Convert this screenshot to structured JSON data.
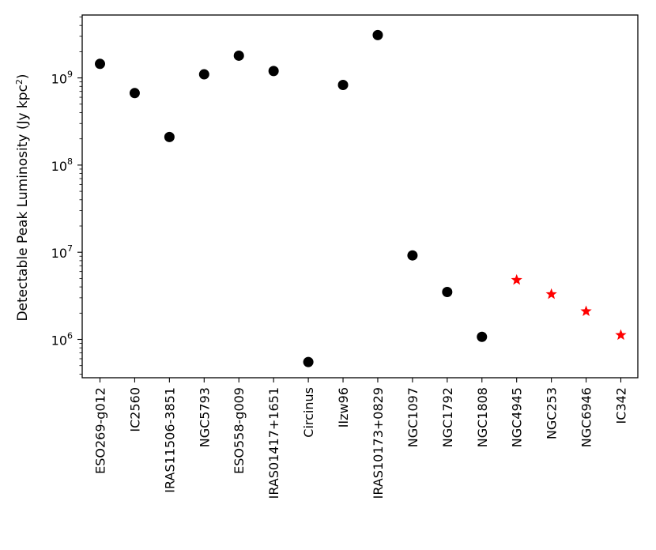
{
  "chart_data": {
    "type": "scatter",
    "title": "",
    "xlabel": "",
    "ylabel_prefix": "Detectable Peak Luminosity (Jy kpc",
    "ylabel_sup": "2",
    "ylabel_suffix": ")",
    "yscale": "log",
    "ylim": [
      350000,
      5000000000
    ],
    "grid": false,
    "categories": [
      "ESO269-g012",
      "IC2560",
      "IRAS11506-3851",
      "NGC5793",
      "ESO558-g009",
      "IRAS01417+1651",
      "Circinus",
      "IIzw96",
      "IRAS10173+0829",
      "NGC1097",
      "NGC1792",
      "NGC1808",
      "NGC4945",
      "NGC253",
      "NGC6946",
      "IC342"
    ],
    "yticks": [
      {
        "value": 1000000,
        "base": "10",
        "exp": "6"
      },
      {
        "value": 10000000,
        "base": "10",
        "exp": "7"
      },
      {
        "value": 100000000,
        "base": "10",
        "exp": "8"
      },
      {
        "value": 1000000000,
        "base": "10",
        "exp": "9"
      }
    ],
    "series": [
      {
        "marker": "circle",
        "color": "#000000",
        "points": [
          {
            "x": "ESO269-g012",
            "y": 1450000000
          },
          {
            "x": "IC2560",
            "y": 670000000
          },
          {
            "x": "IRAS11506-3851",
            "y": 210000000
          },
          {
            "x": "NGC5793",
            "y": 1100000000
          },
          {
            "x": "ESO558-g009",
            "y": 1800000000
          },
          {
            "x": "IRAS01417+1651",
            "y": 1200000000
          },
          {
            "x": "Circinus",
            "y": 550000
          },
          {
            "x": "IIzw96",
            "y": 830000000
          },
          {
            "x": "IRAS10173+0829",
            "y": 3100000000
          },
          {
            "x": "NGC1097",
            "y": 9200000
          },
          {
            "x": "NGC1792",
            "y": 3500000
          },
          {
            "x": "NGC1808",
            "y": 1070000
          }
        ]
      },
      {
        "marker": "star",
        "color": "#ff0000",
        "points": [
          {
            "x": "NGC4945",
            "y": 4800000
          },
          {
            "x": "NGC253",
            "y": 3300000
          },
          {
            "x": "NGC6946",
            "y": 2100000
          },
          {
            "x": "IC342",
            "y": 1120000
          }
        ]
      }
    ]
  }
}
